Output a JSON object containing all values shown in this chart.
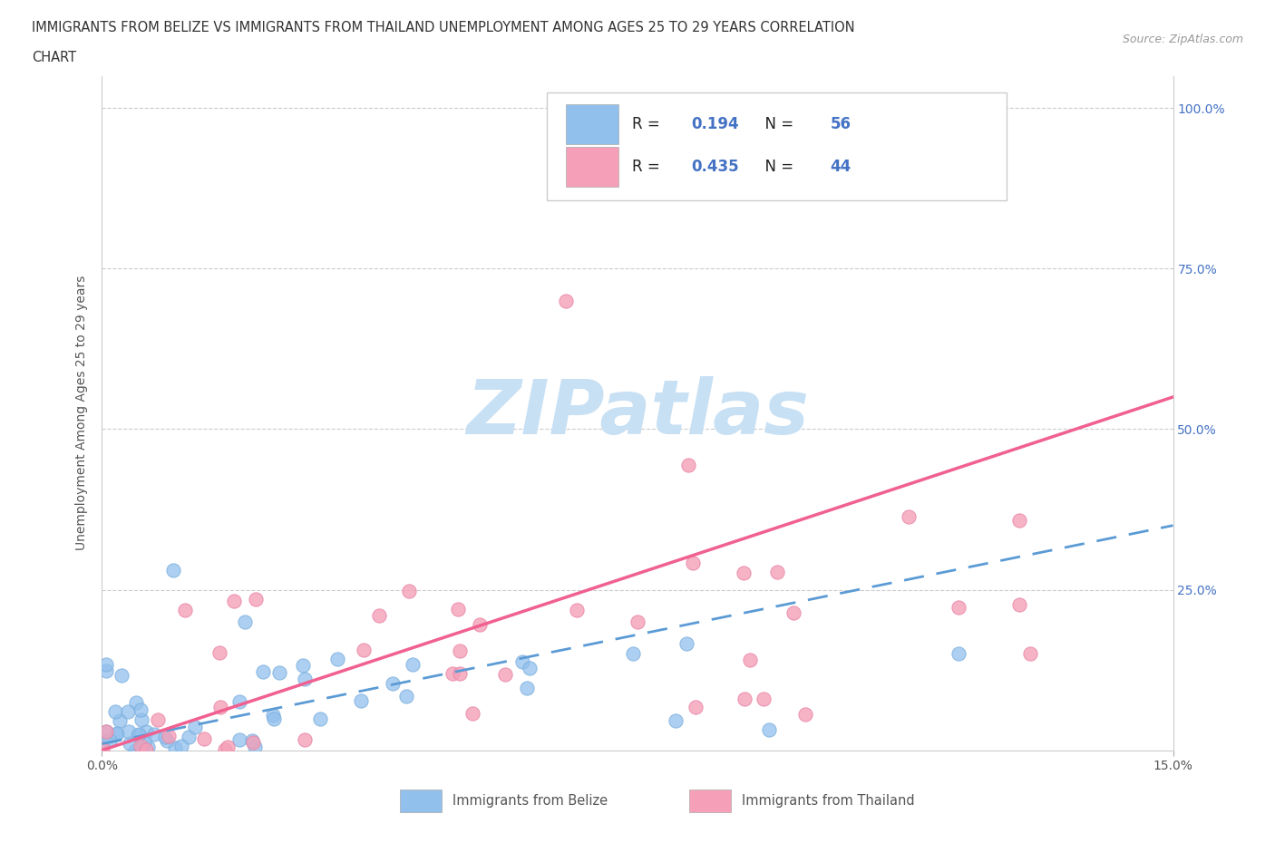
{
  "title_line1": "IMMIGRANTS FROM BELIZE VS IMMIGRANTS FROM THAILAND UNEMPLOYMENT AMONG AGES 25 TO 29 YEARS CORRELATION",
  "title_line2": "CHART",
  "source": "Source: ZipAtlas.com",
  "ylabel": "Unemployment Among Ages 25 to 29 years",
  "xlim": [
    0,
    0.15
  ],
  "ylim": [
    0,
    1.05
  ],
  "yticks": [
    0.0,
    0.25,
    0.5,
    0.75,
    1.0
  ],
  "yticklabels_right": [
    "",
    "25.0%",
    "50.0%",
    "75.0%",
    "100.0%"
  ],
  "belize_color": "#92c0ed",
  "thailand_color": "#f5a0b8",
  "belize_line_color": "#5b9bd5",
  "thailand_line_color": "#f06090",
  "R_belize": 0.194,
  "N_belize": 56,
  "R_thailand": 0.435,
  "N_thailand": 44,
  "legend_label_belize": "Immigrants from Belize",
  "legend_label_thailand": "Immigrants from Thailand",
  "belize_slope": 2.333,
  "belize_intercept": 0.0,
  "thailand_slope": 3.8,
  "thailand_intercept": 0.0,
  "watermark_text": "ZIPatlas",
  "watermark_color": "#c8e0f4"
}
